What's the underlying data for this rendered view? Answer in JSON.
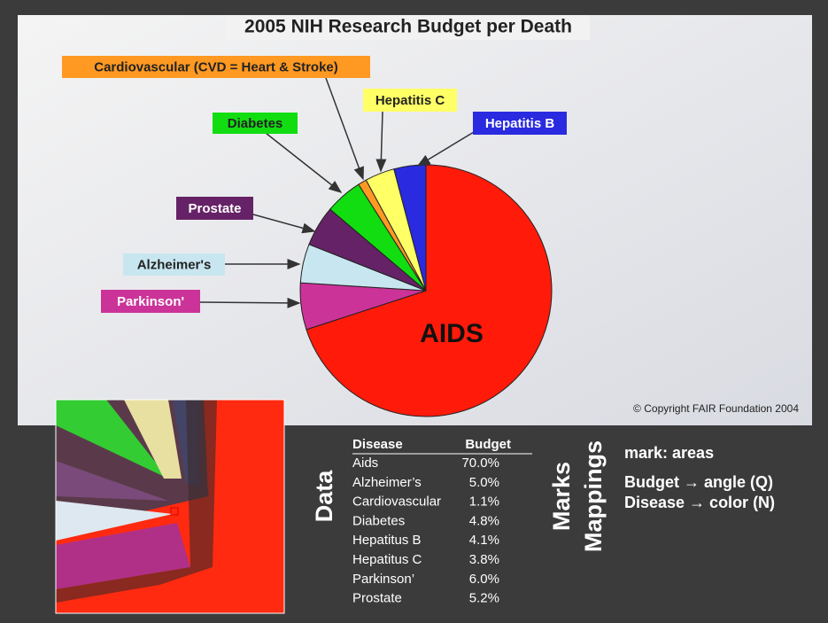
{
  "chart_data": {
    "type": "pie",
    "title": "2005 NIH Research Budget per Death",
    "categories": [
      "AIDS",
      "Parkinson'",
      "Alzheimer's",
      "Prostate",
      "Diabetes",
      "Cardiovascular (CVD = Heart & Stroke)",
      "Hepatitis C",
      "Hepatitis B"
    ],
    "values": [
      70.0,
      6.0,
      5.0,
      5.2,
      4.8,
      1.1,
      3.8,
      4.1
    ],
    "colors": [
      "#ff1a0a",
      "#cc3399",
      "#c8e6f0",
      "#662266",
      "#11dd11",
      "#ff9922",
      "#ffff66",
      "#2a2ae0"
    ],
    "annotation": "© Copyright FAIR Foundation 2004"
  },
  "table": {
    "header": [
      "Disease",
      "Budget"
    ],
    "rows": [
      [
        "Aids",
        "70.0%"
      ],
      [
        "Alzheimer’s",
        "5.0%"
      ],
      [
        "Cardiovascular",
        "1.1%"
      ],
      [
        "Diabetes",
        "4.8%"
      ],
      [
        "Hepatitus B",
        "4.1%"
      ],
      [
        "Hepatitus C",
        "3.8%"
      ],
      [
        "Parkinson’",
        "6.0%"
      ],
      [
        "Prostate",
        "5.2%"
      ]
    ]
  },
  "side_labels": [
    "Data",
    "Marks",
    "Mappings"
  ],
  "mappings": [
    "mark: areas",
    "Budget → angle (Q)",
    "Disease → color (N)"
  ]
}
